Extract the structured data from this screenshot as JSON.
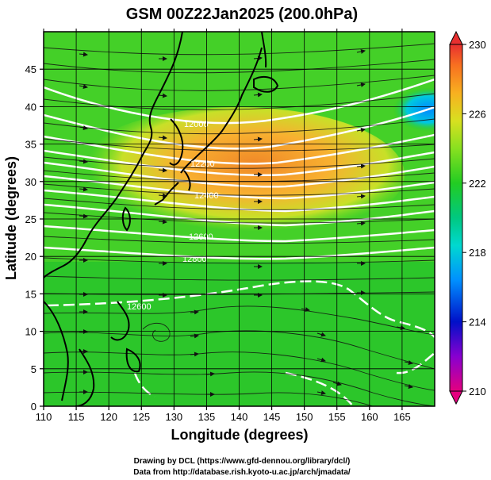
{
  "title": "GSM 00Z22Jan2025 (200.0hPa)",
  "x_axis": {
    "label": "Longitude (degrees)",
    "range": [
      110,
      170
    ],
    "ticks": [
      "110",
      "115",
      "120",
      "125",
      "130",
      "135",
      "140",
      "145",
      "150",
      "155",
      "160",
      "165"
    ]
  },
  "y_axis": {
    "label": "Latitude  (degrees)",
    "range": [
      0,
      50
    ],
    "ticks": [
      "0",
      "5",
      "10",
      "15",
      "20",
      "25",
      "30",
      "35",
      "40",
      "45"
    ]
  },
  "colorbar": {
    "range": [
      210,
      230
    ],
    "tick_labels": [
      "230",
      "226",
      "222",
      "218",
      "214",
      "210"
    ],
    "colors": [
      "#e4007f",
      "#8800d0",
      "#0010c8",
      "#0090ff",
      "#00d8d0",
      "#00c880",
      "#22cc22",
      "#88e020",
      "#d8e020",
      "#f8b020",
      "#f87020",
      "#e83030"
    ]
  },
  "credits": {
    "line1": "Drawing by DCL (https://www.gfd-dennou.org/library/dcl/)",
    "line2": "Data from http://database.rish.kyoto-u.ac.jp/arch/jmadata/"
  },
  "contour_labels": [
    "12000",
    "12200",
    "12400",
    "12600",
    "12800",
    "12600"
  ]
}
